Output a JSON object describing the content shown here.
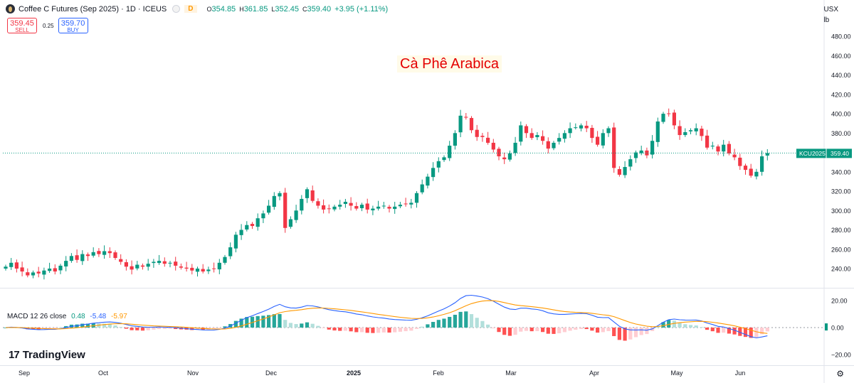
{
  "header": {
    "title": "Coffee C Futures (Sep 2025) · 1D · ICEUS",
    "interval_badge": "D",
    "ohlc": [
      {
        "key": "O",
        "value": "354.85"
      },
      {
        "key": "H",
        "value": "361.85"
      },
      {
        "key": "L",
        "value": "352.45"
      },
      {
        "key": "C",
        "value": "359.40"
      }
    ],
    "change": "+3.95 (+1.11%)"
  },
  "trade": {
    "sell_price": "359.45",
    "sell_label": "SELL",
    "spread": "0.25",
    "buy_price": "359.70",
    "buy_label": "BUY"
  },
  "price_axis": {
    "currency": "USX",
    "unit": "lb"
  },
  "overlay_text": "Cà Phê Arabica",
  "last_price_tag": {
    "symbol": "KCU2025",
    "price": "359.40"
  },
  "macd": {
    "label": "MACD 12 26 close",
    "hist": "0.48",
    "macd": "-5.48",
    "signal": "-5.97"
  },
  "branding": {
    "name": "TradingView"
  },
  "colors": {
    "up": "#089981",
    "down": "#f23645",
    "macd_line": "#2962ff",
    "signal_line": "#ff9800",
    "hist_up_strong": "#26a69a",
    "hist_up_weak": "#b2dfdb",
    "hist_down_strong": "#ff5252",
    "hist_down_weak": "#ffcdd2"
  },
  "chart_data": [
    {
      "type": "candlestick",
      "title": "",
      "x_labels": [
        "Sep",
        "Oct",
        "Nov",
        "Dec",
        "2025",
        "Feb",
        "Mar",
        "Apr",
        "May",
        "Jun"
      ],
      "y_ticks": [
        240,
        260,
        280,
        300,
        320,
        340,
        360,
        380,
        400,
        420,
        440,
        460,
        480
      ],
      "ylim": [
        228,
        488
      ],
      "last_price": 359.4,
      "grid": false,
      "closes": [
        242,
        246,
        240,
        237,
        233,
        236,
        235,
        238,
        240,
        237,
        243,
        248,
        253,
        249,
        255,
        253,
        257,
        255,
        258,
        256,
        251,
        247,
        242,
        239,
        244,
        242,
        245,
        247,
        248,
        245,
        246,
        243,
        241,
        240,
        238,
        240,
        237,
        239,
        240,
        246,
        252,
        262,
        275,
        280,
        285,
        284,
        292,
        297,
        305,
        315,
        318,
        282,
        291,
        300,
        312,
        322,
        310,
        305,
        301,
        302,
        304,
        306,
        309,
        305,
        302,
        306,
        301,
        302,
        304,
        305,
        302,
        304,
        306,
        307,
        308,
        318,
        327,
        335,
        344,
        351,
        355,
        367,
        380,
        398,
        396,
        383,
        376,
        376,
        370,
        363,
        356,
        353,
        359,
        370,
        388,
        380,
        375,
        378,
        372,
        364,
        370,
        375,
        380,
        385,
        386,
        388,
        385,
        375,
        368,
        380,
        385,
        344,
        337,
        345,
        353,
        360,
        362,
        357,
        372,
        392,
        400,
        400,
        388,
        378,
        381,
        383,
        385,
        377,
        365,
        367,
        361,
        368,
        359,
        355,
        346,
        342,
        336,
        340,
        356,
        359.4
      ],
      "ohlc_source": "approximate daily candles from Aug 2024 to Jun 2025"
    },
    {
      "type": "macd",
      "title": "",
      "y_ticks": [
        20,
        0,
        -20
      ],
      "ylim": [
        -23,
        24
      ],
      "latest": {
        "histogram": 0.48,
        "macd": -5.48,
        "signal": -5.97
      }
    }
  ]
}
